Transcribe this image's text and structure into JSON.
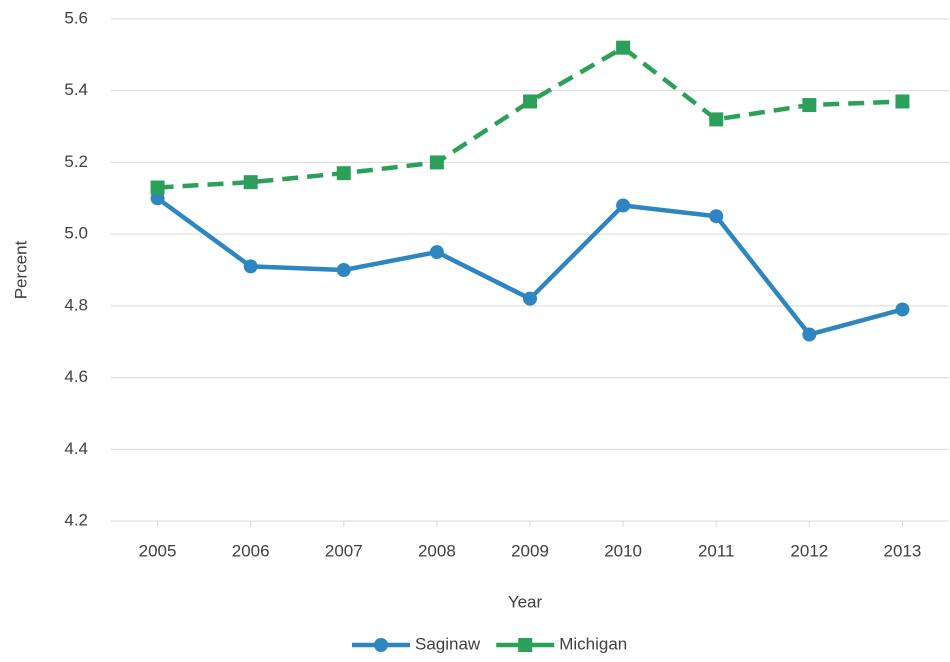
{
  "chart_data": {
    "type": "line",
    "x_label": "Year",
    "y_label": "Percent",
    "categories": [
      "2005",
      "2006",
      "2007",
      "2008",
      "2009",
      "2010",
      "2011",
      "2012",
      "2013"
    ],
    "series": [
      {
        "name": "Saginaw",
        "color": "#2e86c1",
        "marker": "circle",
        "dashed": false,
        "values": [
          5.1,
          4.91,
          4.9,
          4.95,
          4.82,
          5.08,
          5.05,
          4.72,
          4.79
        ]
      },
      {
        "name": "Michigan",
        "color": "#2ca05a",
        "marker": "square",
        "dashed": true,
        "values": [
          5.13,
          5.145,
          5.17,
          5.2,
          5.37,
          5.52,
          5.32,
          5.36,
          5.37
        ]
      }
    ],
    "ylim": [
      4.2,
      5.6
    ],
    "yticks": [
      4.2,
      4.4,
      4.6,
      4.8,
      {
        "value": 5,
        "label": "5.0"
      },
      5.2,
      5.4,
      5.6
    ],
    "grid": true,
    "legend": "bottom"
  }
}
